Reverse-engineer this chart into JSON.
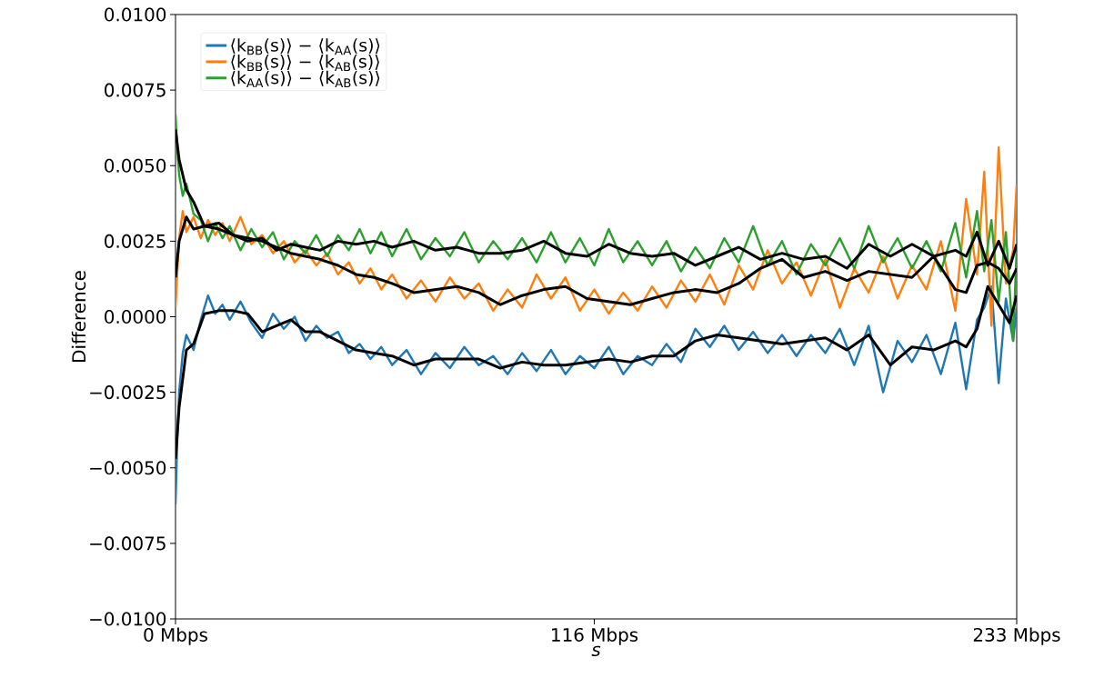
{
  "chart_data": {
    "type": "line",
    "xlabel": "s",
    "ylabel": "Difference",
    "xlim": [
      0,
      233
    ],
    "ylim": [
      -0.01,
      0.01
    ],
    "xticks": [
      {
        "value": 0,
        "label": "0 Mbps"
      },
      {
        "value": 116,
        "label": "116 Mbps"
      },
      {
        "value": 233,
        "label": "233 Mbps"
      }
    ],
    "yticks": [
      {
        "value": -0.01,
        "label": "−0.0100"
      },
      {
        "value": -0.0075,
        "label": "−0.0075"
      },
      {
        "value": -0.005,
        "label": "−0.0050"
      },
      {
        "value": -0.0025,
        "label": "−0.0025"
      },
      {
        "value": 0,
        "label": "0.0000"
      },
      {
        "value": 0.0025,
        "label": "0.0025"
      },
      {
        "value": 0.005,
        "label": "0.0050"
      },
      {
        "value": 0.0075,
        "label": "0.0075"
      },
      {
        "value": 0.01,
        "label": "0.0100"
      }
    ],
    "legend": "top left",
    "grid": false,
    "marker": "none",
    "line_style": "solid",
    "x": [
      0,
      1,
      3,
      5,
      8,
      12,
      16,
      20,
      24,
      28,
      32,
      36,
      40,
      45,
      50,
      55,
      60,
      66,
      72,
      78,
      84,
      90,
      96,
      102,
      108,
      114,
      120,
      126,
      132,
      138,
      144,
      150,
      156,
      162,
      168,
      174,
      180,
      186,
      192,
      198,
      204,
      210,
      216,
      219,
      222,
      225,
      228,
      231,
      233
    ],
    "series": [
      {
        "name": "⟨k$_{BB}$(s)⟩ − ⟨k$_{AA}$(s)⟩",
        "color": "#1f77b4",
        "x": [
          0,
          0.5,
          1,
          2,
          3,
          5,
          7,
          9,
          11,
          13,
          15,
          18,
          21,
          24,
          27,
          30,
          33,
          36,
          39,
          42,
          45,
          48,
          51,
          54,
          57,
          60,
          64,
          68,
          72,
          76,
          80,
          84,
          88,
          92,
          96,
          100,
          104,
          108,
          112,
          116,
          120,
          124,
          128,
          132,
          136,
          140,
          144,
          148,
          152,
          156,
          160,
          164,
          168,
          172,
          176,
          180,
          184,
          188,
          192,
          196,
          200,
          204,
          208,
          212,
          216,
          219,
          222,
          224,
          226,
          228,
          230,
          232,
          233
        ],
        "values": [
          -0.0062,
          -0.004,
          -0.0025,
          -0.0012,
          -0.0006,
          -0.0011,
          -0.0001,
          0.0007,
          0.0001,
          0.0004,
          -0.0001,
          0.0005,
          -0.0002,
          -0.0007,
          0.0001,
          -0.0004,
          0.0,
          -0.0008,
          -0.0003,
          -0.0007,
          -0.0005,
          -0.0012,
          -0.0009,
          -0.0014,
          -0.001,
          -0.0016,
          -0.0011,
          -0.0019,
          -0.0012,
          -0.0017,
          -0.001,
          -0.0016,
          -0.0013,
          -0.0019,
          -0.0012,
          -0.0018,
          -0.0011,
          -0.0019,
          -0.0013,
          -0.0017,
          -0.001,
          -0.0019,
          -0.0013,
          -0.0016,
          -0.0009,
          -0.0015,
          -0.0004,
          -0.001,
          -0.0003,
          -0.0011,
          -0.0005,
          -0.0012,
          -0.0006,
          -0.0013,
          -0.0006,
          -0.0012,
          -0.0004,
          -0.0016,
          -0.0003,
          -0.0025,
          -0.0008,
          -0.0015,
          -0.0006,
          -0.0019,
          -0.0002,
          -0.0024,
          -0.0001,
          0.0003,
          0.001,
          -0.0022,
          0.0006,
          -0.0008,
          0.0003
        ]
      },
      {
        "name": "⟨k$_{BB}$(s)⟩ − ⟨k$_{AB}$(s)⟩",
        "color": "#ff7f0e",
        "x": [
          0,
          0.5,
          1,
          2,
          3,
          5,
          7,
          9,
          11,
          13,
          15,
          18,
          21,
          24,
          27,
          30,
          33,
          36,
          39,
          42,
          45,
          48,
          51,
          54,
          57,
          60,
          64,
          68,
          72,
          76,
          80,
          84,
          88,
          92,
          96,
          100,
          104,
          108,
          112,
          116,
          120,
          124,
          128,
          132,
          136,
          140,
          144,
          148,
          152,
          156,
          160,
          164,
          168,
          172,
          176,
          180,
          184,
          188,
          192,
          196,
          200,
          204,
          208,
          212,
          216,
          219,
          222,
          224,
          226,
          228,
          230,
          232,
          233
        ],
        "values": [
          0.0003,
          0.0015,
          0.0026,
          0.0035,
          0.0028,
          0.0033,
          0.0026,
          0.0032,
          0.0027,
          0.0031,
          0.0025,
          0.0033,
          0.0024,
          0.0027,
          0.0021,
          0.0025,
          0.0018,
          0.0022,
          0.0017,
          0.0021,
          0.0014,
          0.0018,
          0.0011,
          0.0016,
          0.0009,
          0.0014,
          0.0006,
          0.0012,
          0.0005,
          0.0013,
          0.0006,
          0.0011,
          0.0002,
          0.0009,
          0.0003,
          0.0014,
          0.0006,
          0.0013,
          0.0002,
          0.0009,
          0.0001,
          0.0008,
          0.0002,
          0.001,
          0.0003,
          0.0012,
          0.0005,
          0.0014,
          0.0004,
          0.0017,
          0.0009,
          0.0022,
          0.0011,
          0.0018,
          0.0007,
          0.0019,
          0.0003,
          0.0016,
          0.0008,
          0.002,
          0.0006,
          0.0017,
          0.0009,
          0.0025,
          0.0002,
          0.0039,
          0.0014,
          0.0048,
          -0.0003,
          0.0056,
          0.0011,
          0.0022,
          0.0044
        ]
      },
      {
        "name": "⟨k$_{AA}$(s)⟩ − ⟨k$_{AB}$(s)⟩",
        "color": "#2ca02c",
        "x": [
          0,
          0.5,
          1,
          2,
          3,
          5,
          7,
          9,
          11,
          13,
          15,
          18,
          21,
          24,
          27,
          30,
          33,
          36,
          39,
          42,
          45,
          48,
          51,
          54,
          57,
          60,
          64,
          68,
          72,
          76,
          80,
          84,
          88,
          92,
          96,
          100,
          104,
          108,
          112,
          116,
          120,
          124,
          128,
          132,
          136,
          140,
          144,
          148,
          152,
          156,
          160,
          164,
          168,
          172,
          176,
          180,
          184,
          188,
          192,
          196,
          200,
          204,
          208,
          212,
          216,
          219,
          222,
          224,
          226,
          228,
          230,
          232,
          233
        ],
        "values": [
          0.0067,
          0.0055,
          0.0047,
          0.004,
          0.0044,
          0.0034,
          0.0032,
          0.0025,
          0.0031,
          0.0026,
          0.003,
          0.0022,
          0.0029,
          0.0023,
          0.0028,
          0.0019,
          0.0025,
          0.0021,
          0.0027,
          0.002,
          0.0027,
          0.0022,
          0.0029,
          0.0021,
          0.0028,
          0.002,
          0.0029,
          0.0019,
          0.0026,
          0.002,
          0.0028,
          0.0018,
          0.0025,
          0.0019,
          0.0026,
          0.0018,
          0.0028,
          0.0018,
          0.0026,
          0.0017,
          0.0029,
          0.0018,
          0.0025,
          0.0017,
          0.0025,
          0.0015,
          0.0023,
          0.0016,
          0.0026,
          0.0018,
          0.003,
          0.0017,
          0.0025,
          0.0014,
          0.0024,
          0.0017,
          0.0026,
          0.0016,
          0.003,
          0.0018,
          0.0026,
          0.0016,
          0.0025,
          0.0015,
          0.0031,
          0.0013,
          0.0035,
          0.0015,
          0.0032,
          0.0005,
          0.0028,
          -0.0008,
          0.0023
        ]
      },
      {
        "color": "#000000",
        "values": [
          -0.0047,
          -0.003,
          -0.0011,
          -0.0009,
          0.0001,
          0.0002,
          0.0002,
          0.0001,
          -0.0005,
          -0.0003,
          -0.0001,
          -0.0005,
          -0.0005,
          -0.0008,
          -0.0011,
          -0.0012,
          -0.0013,
          -0.0016,
          -0.0014,
          -0.0014,
          -0.0014,
          -0.0017,
          -0.0015,
          -0.0016,
          -0.0016,
          -0.0015,
          -0.0014,
          -0.0015,
          -0.0013,
          -0.0013,
          -0.0008,
          -0.0006,
          -0.0007,
          -0.0008,
          -0.0009,
          -0.0008,
          -0.0007,
          -0.0011,
          -0.0006,
          -0.0016,
          -0.001,
          -0.0011,
          -0.0008,
          -0.001,
          -0.0004,
          0.001,
          0.0004,
          -0.0002,
          0.0007
        ]
      },
      {
        "color": "#000000",
        "values": [
          0.0013,
          0.0025,
          0.0033,
          0.0029,
          0.003,
          0.0031,
          0.0027,
          0.0026,
          0.0025,
          0.0023,
          0.0021,
          0.002,
          0.0019,
          0.0017,
          0.0014,
          0.0013,
          0.0011,
          0.0008,
          0.0009,
          0.001,
          0.0008,
          0.0004,
          0.0007,
          0.0009,
          0.001,
          0.0006,
          0.0005,
          0.0004,
          0.0006,
          0.0008,
          0.0009,
          0.0008,
          0.0011,
          0.0016,
          0.0019,
          0.0013,
          0.0015,
          0.0012,
          0.0015,
          0.0014,
          0.0013,
          0.002,
          0.0009,
          0.0008,
          0.0017,
          0.0018,
          0.0016,
          0.0011,
          0.0016
        ]
      },
      {
        "color": "#000000",
        "values": [
          0.0062,
          0.0052,
          0.0042,
          0.0038,
          0.003,
          0.0029,
          0.0027,
          0.0025,
          0.0026,
          0.0022,
          0.0024,
          0.0023,
          0.0022,
          0.0025,
          0.0024,
          0.0025,
          0.0023,
          0.0025,
          0.0022,
          0.0023,
          0.0021,
          0.0021,
          0.0022,
          0.0025,
          0.0021,
          0.002,
          0.0024,
          0.0021,
          0.002,
          0.0021,
          0.0017,
          0.002,
          0.0023,
          0.0019,
          0.0021,
          0.0019,
          0.002,
          0.0016,
          0.0024,
          0.002,
          0.0024,
          0.002,
          0.0022,
          0.002,
          0.0028,
          0.0017,
          0.0025,
          0.0016,
          0.0024
        ]
      }
    ]
  }
}
